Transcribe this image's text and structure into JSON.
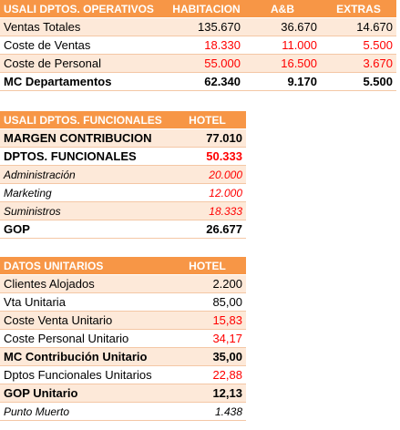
{
  "tables": [
    {
      "header": [
        "USALI DPTOS. OPERATIVOS",
        "HABITACION",
        "A&B",
        "EXTRAS"
      ],
      "rows": [
        {
          "cells": [
            "Ventas Totales",
            "135.670",
            "36.670",
            "14.670"
          ]
        },
        {
          "cells": [
            "Coste de Ventas",
            "18.330",
            "11.000",
            "5.500"
          ],
          "value_color": "#ff0000"
        },
        {
          "cells": [
            "Coste de Personal",
            "55.000",
            "16.500",
            "3.670"
          ],
          "value_color": "#ff0000"
        },
        {
          "cells": [
            "MC Departamentos",
            "62.340",
            "9.170",
            "5.500"
          ],
          "style": "bold"
        }
      ]
    },
    {
      "header": [
        "USALI DPTOS. FUNCIONALES",
        "HOTEL"
      ],
      "rows": [
        {
          "cells": [
            "MARGEN CONTRIBUCION",
            "77.010"
          ],
          "style": "bold"
        },
        {
          "cells": [
            "DPTOS. FUNCIONALES",
            "50.333"
          ],
          "style": "bold",
          "value_color": "#ff0000"
        },
        {
          "cells": [
            "Administración",
            "20.000"
          ],
          "style": "italic",
          "value_color": "#ff0000"
        },
        {
          "cells": [
            "Marketing",
            "12.000"
          ],
          "style": "italic",
          "value_color": "#ff0000"
        },
        {
          "cells": [
            "Suministros",
            "18.333"
          ],
          "style": "italic",
          "value_color": "#ff0000"
        },
        {
          "cells": [
            "GOP",
            "26.677"
          ],
          "style": "bold"
        }
      ]
    },
    {
      "header": [
        "DATOS UNITARIOS",
        "HOTEL"
      ],
      "rows": [
        {
          "cells": [
            "Clientes Alojados",
            "2.200"
          ]
        },
        {
          "cells": [
            "Vta Unitaria",
            "85,00"
          ]
        },
        {
          "cells": [
            "Coste Venta Unitario",
            "15,83"
          ],
          "value_color": "#ff0000"
        },
        {
          "cells": [
            "Coste Personal Unitario",
            "34,17"
          ],
          "value_color": "#ff0000"
        },
        {
          "cells": [
            "MC Contribución Unitario",
            "35,00"
          ],
          "style": "bold"
        },
        {
          "cells": [
            "Dptos Funcionales Unitarios",
            "22,88"
          ],
          "value_color": "#ff0000"
        },
        {
          "cells": [
            "GOP Unitario",
            "12,13"
          ],
          "style": "bold"
        },
        {
          "cells": [
            "Punto Muerto",
            "1.438"
          ],
          "style": "italic"
        }
      ]
    }
  ]
}
